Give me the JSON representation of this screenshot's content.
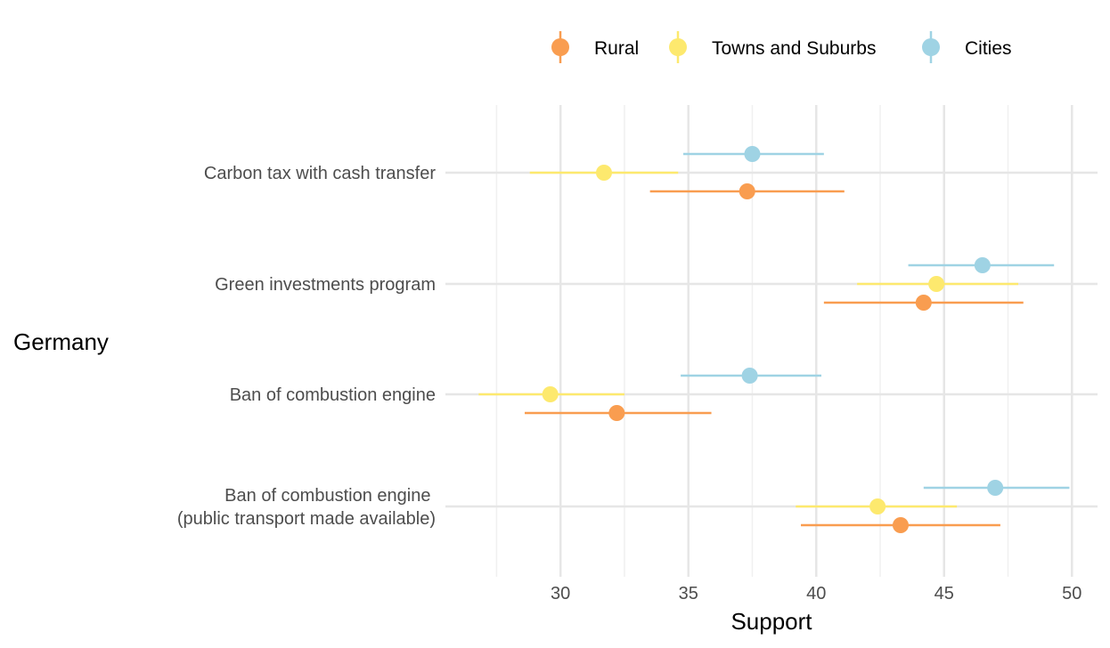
{
  "chart_data": {
    "type": "scatter",
    "subtype": "dot-with-error-bars",
    "xlabel": "Support",
    "ylabel": "Germany",
    "xlim": [
      25.5,
      51
    ],
    "x_ticks": [
      30,
      35,
      40,
      45,
      50
    ],
    "grid": true,
    "legend_position": "top-right",
    "categories": [
      "Carbon tax with cash transfer",
      "Green investments program",
      "Ban of combustion engine",
      "Ban of combustion engine \n(public transport made available)"
    ],
    "series": [
      {
        "name": "Rural",
        "color": "#F99D50",
        "values": [
          {
            "value": 37.3,
            "low": 33.5,
            "high": 41.1
          },
          {
            "value": 44.2,
            "low": 40.3,
            "high": 48.1
          },
          {
            "value": 32.2,
            "low": 28.6,
            "high": 35.9
          },
          {
            "value": 43.3,
            "low": 39.4,
            "high": 47.2
          }
        ]
      },
      {
        "name": "Towns and Suburbs",
        "color": "#FDE96E",
        "values": [
          {
            "value": 31.7,
            "low": 28.8,
            "high": 34.6
          },
          {
            "value": 44.7,
            "low": 41.6,
            "high": 47.9
          },
          {
            "value": 29.6,
            "low": 26.8,
            "high": 32.5
          },
          {
            "value": 42.4,
            "low": 39.2,
            "high": 45.5
          }
        ]
      },
      {
        "name": "Cities",
        "color": "#9FD3E4",
        "values": [
          {
            "value": 37.5,
            "low": 34.8,
            "high": 40.3
          },
          {
            "value": 46.5,
            "low": 43.6,
            "high": 49.3
          },
          {
            "value": 37.4,
            "low": 34.7,
            "high": 40.2
          },
          {
            "value": 47.0,
            "low": 44.2,
            "high": 49.9
          }
        ]
      }
    ]
  }
}
